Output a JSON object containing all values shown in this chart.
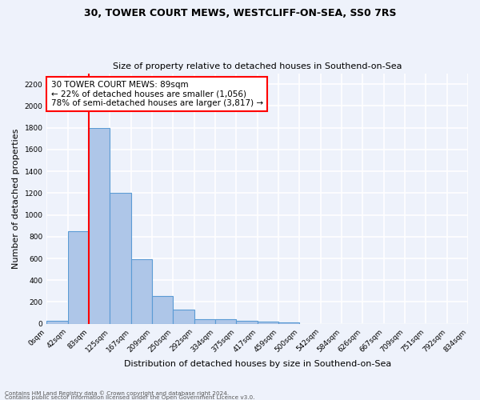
{
  "title1": "30, TOWER COURT MEWS, WESTCLIFF-ON-SEA, SS0 7RS",
  "title2": "Size of property relative to detached houses in Southend-on-Sea",
  "xlabel": "Distribution of detached houses by size in Southend-on-Sea",
  "ylabel": "Number of detached properties",
  "bin_labels": [
    "0sqm",
    "42sqm",
    "83sqm",
    "125sqm",
    "167sqm",
    "209sqm",
    "250sqm",
    "292sqm",
    "334sqm",
    "375sqm",
    "417sqm",
    "459sqm",
    "500sqm",
    "542sqm",
    "584sqm",
    "626sqm",
    "667sqm",
    "709sqm",
    "751sqm",
    "792sqm",
    "834sqm"
  ],
  "bar_heights": [
    25,
    850,
    1800,
    1200,
    590,
    255,
    130,
    45,
    40,
    30,
    18,
    12,
    0,
    0,
    0,
    0,
    0,
    0,
    0,
    0
  ],
  "bar_color": "#aec6e8",
  "bar_edge_color": "#5b9bd5",
  "ylim": [
    0,
    2300
  ],
  "yticks": [
    0,
    200,
    400,
    600,
    800,
    1000,
    1200,
    1400,
    1600,
    1800,
    2000,
    2200
  ],
  "red_line_bin": 2,
  "annotation_title": "30 TOWER COURT MEWS: 89sqm",
  "annotation_line1": "← 22% of detached houses are smaller (1,056)",
  "annotation_line2": "78% of semi-detached houses are larger (3,817) →",
  "footer1": "Contains HM Land Registry data © Crown copyright and database right 2024.",
  "footer2": "Contains public sector information licensed under the Open Government Licence v3.0.",
  "background_color": "#eef2fb",
  "grid_color": "#ffffff"
}
